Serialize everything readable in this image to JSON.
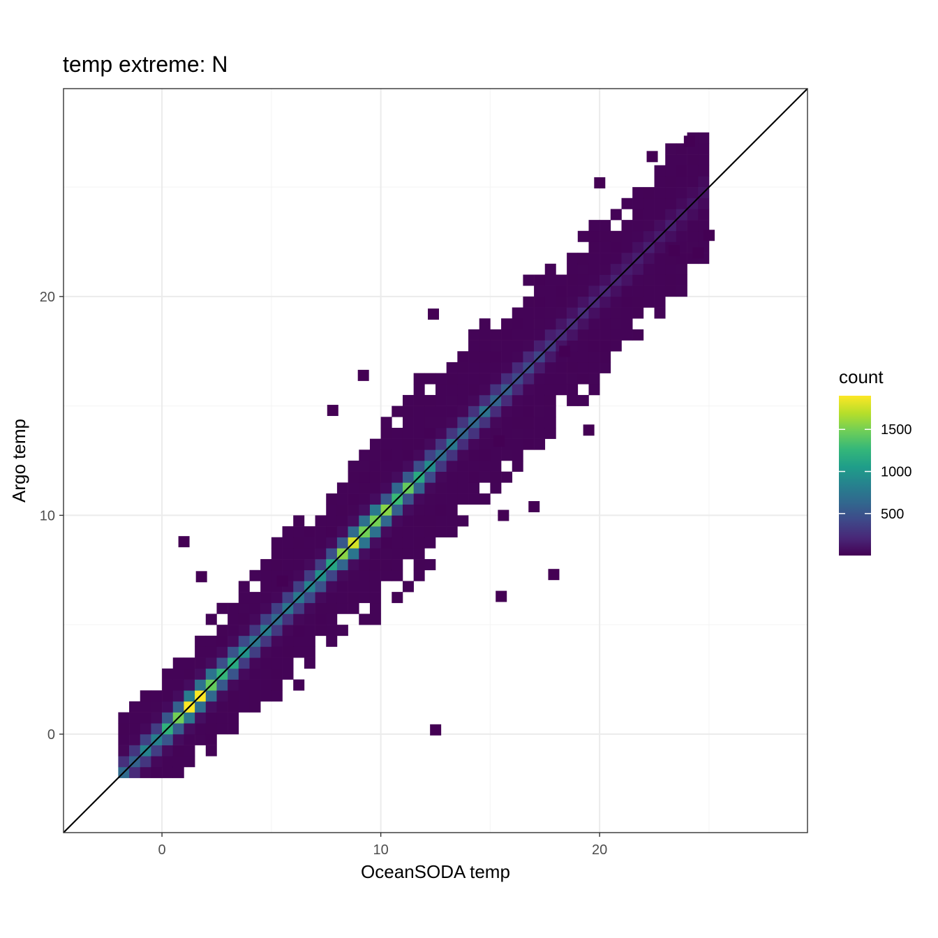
{
  "chart_data": {
    "type": "heatmap",
    "subtype": "2d-bin-count",
    "title": "temp extreme: N",
    "xlabel": "OceanSODA temp",
    "ylabel": "Argo temp",
    "xlim": [
      -4.5,
      29.5
    ],
    "ylim": [
      -4.5,
      29.5
    ],
    "xticks": [
      0,
      10,
      20
    ],
    "yticks": [
      0,
      10,
      20
    ],
    "x_tick_labels": [
      "0",
      "10",
      "20"
    ],
    "y_tick_labels": [
      "0",
      "10",
      "20"
    ],
    "bin_width": 0.5,
    "grid": true,
    "reference_line": {
      "type": "identity",
      "slope": 1,
      "intercept": 0,
      "color": "#000000"
    },
    "legend": {
      "title": "count",
      "placement": "right",
      "range": [
        1,
        1900
      ],
      "breaks": [
        500,
        1000,
        1500
      ],
      "break_labels": [
        "500",
        "1000",
        "1500"
      ],
      "colormap": "viridis"
    },
    "distribution": {
      "diagonal_band_y_minus_x_sd": 0.35,
      "density_peaks": [
        {
          "x": 1.5,
          "count": 1850
        },
        {
          "x": 9.3,
          "count": 1650
        },
        {
          "x": 11.4,
          "count": 1450
        }
      ],
      "x_extent": [
        -2,
        25
      ],
      "outlier_cells": [
        [
          12.5,
          0.2
        ],
        [
          1.0,
          8.8
        ],
        [
          1.8,
          7.2
        ],
        [
          17.9,
          7.3
        ],
        [
          15.5,
          6.3
        ],
        [
          15.6,
          10.0
        ],
        [
          17.0,
          10.4
        ],
        [
          7.8,
          14.8
        ],
        [
          9.2,
          16.4
        ],
        [
          15.4,
          13.4
        ],
        [
          19.5,
          13.9
        ],
        [
          18.4,
          17.5
        ],
        [
          12.4,
          19.2
        ],
        [
          24.1,
          27.1
        ],
        [
          22.4,
          26.4
        ],
        [
          20.0,
          25.2
        ],
        [
          25.0,
          22.8
        ],
        [
          24.5,
          22.0
        ],
        [
          23.4,
          22.1
        ],
        [
          5.5,
          7.0
        ]
      ]
    },
    "colors": {
      "viridis": [
        "#440154",
        "#482878",
        "#3e4989",
        "#31688e",
        "#26828e",
        "#1f9e89",
        "#35b779",
        "#6ece58",
        "#b5de2b",
        "#fde725"
      ],
      "panel_border": "#333333",
      "grid_major": "#ebebeb",
      "grid_minor": "#f5f5f5"
    }
  }
}
